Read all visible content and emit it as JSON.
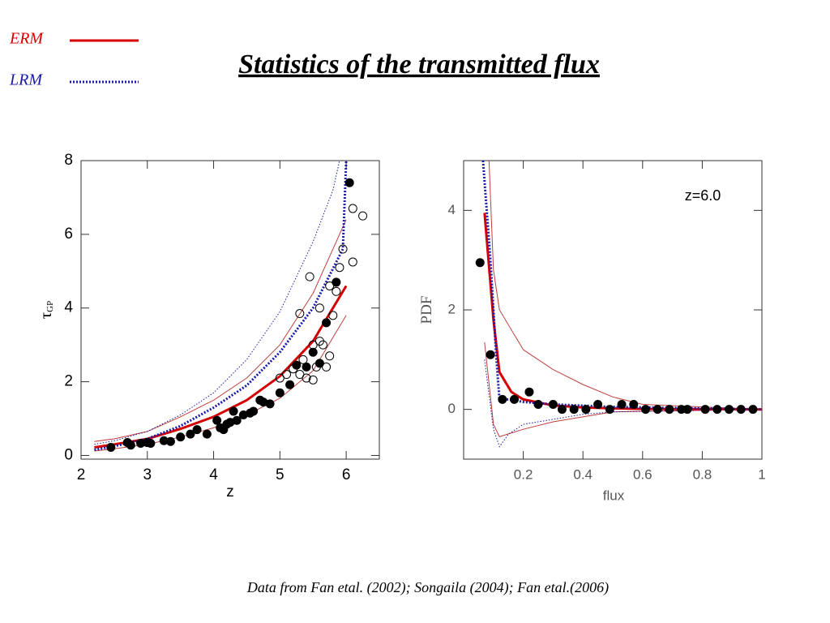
{
  "title": "Statistics of the transmitted flux",
  "footnote": "Data from Fan etal. (2002); Songaila (2004); Fan etal.(2006)",
  "legend": [
    {
      "label": "ERM",
      "color": "#d40000",
      "style": "solid"
    },
    {
      "label": "LRM",
      "color": "#1a1aa8",
      "style": "dotted"
    }
  ],
  "chart_data": [
    {
      "type": "scatter",
      "xlabel": "z",
      "ylabel": "τ",
      "ylabel_sub": "GP",
      "xlim": [
        2,
        6.5
      ],
      "ylim": [
        -0.1,
        8
      ],
      "xticks": [
        2,
        3,
        4,
        5,
        6
      ],
      "yticks": [
        0,
        2,
        4,
        6,
        8
      ],
      "tick_color": "#000000",
      "series": [
        {
          "mode": "lines",
          "color": "#c04040",
          "style": "solid",
          "width": 1,
          "x": [
            2.2,
            2.5,
            3.0,
            3.5,
            4.0,
            4.5,
            5.0,
            5.5,
            6.0
          ],
          "values": [
            0.38,
            0.45,
            0.65,
            1.05,
            1.5,
            2.1,
            3.0,
            4.4,
            6.4
          ]
        },
        {
          "mode": "lines",
          "color": "#c04040",
          "style": "solid",
          "width": 1,
          "x": [
            2.2,
            2.5,
            3.0,
            3.5,
            4.0,
            4.5,
            5.0,
            5.5,
            6.0
          ],
          "values": [
            0.12,
            0.18,
            0.3,
            0.5,
            0.75,
            1.1,
            1.55,
            2.3,
            3.8
          ]
        },
        {
          "mode": "lines",
          "color": "#1a1aa8",
          "style": "dotted",
          "width": 1,
          "x": [
            2.2,
            2.5,
            3.0,
            3.5,
            4.0,
            4.5,
            5.0,
            5.5,
            5.8,
            5.9
          ],
          "values": [
            0.3,
            0.4,
            0.65,
            1.1,
            1.7,
            2.6,
            3.9,
            5.8,
            7.2,
            8
          ]
        },
        {
          "mode": "lines",
          "color": "#d40000",
          "style": "solid",
          "width": 3,
          "x": [
            2.2,
            2.5,
            3.0,
            3.5,
            4.0,
            4.5,
            5.0,
            5.5,
            6.0
          ],
          "values": [
            0.22,
            0.3,
            0.45,
            0.72,
            1.05,
            1.5,
            2.15,
            3.1,
            4.6
          ]
        },
        {
          "mode": "lines",
          "color": "#1a1aa8",
          "style": "dotted",
          "width": 3,
          "x": [
            2.2,
            2.5,
            3.0,
            3.5,
            4.0,
            4.5,
            5.0,
            5.5,
            5.95,
            6.0
          ],
          "values": [
            0.15,
            0.25,
            0.45,
            0.8,
            1.3,
            1.9,
            2.8,
            4.0,
            5.6,
            8
          ]
        },
        {
          "mode": "markers",
          "marker": "open",
          "color": "#000000",
          "x": [
            5.0,
            5.1,
            5.2,
            5.3,
            5.35,
            5.4,
            5.45,
            5.5,
            5.55,
            5.6,
            5.65,
            5.7,
            5.75,
            5.8,
            5.85,
            5.9,
            5.95,
            6.1,
            6.1,
            6.25,
            5.3,
            5.6,
            5.75,
            5.5
          ],
          "values": [
            2.1,
            2.2,
            2.35,
            2.2,
            2.6,
            2.1,
            4.85,
            3.0,
            2.4,
            3.1,
            3.0,
            2.4,
            2.7,
            3.8,
            4.45,
            5.1,
            5.6,
            6.7,
            5.25,
            6.5,
            3.85,
            4.0,
            4.6,
            2.05
          ]
        },
        {
          "mode": "markers",
          "marker": "filled",
          "color": "#000000",
          "x": [
            2.45,
            2.7,
            2.75,
            2.9,
            3.0,
            3.05,
            3.25,
            3.35,
            3.5,
            3.65,
            3.75,
            3.9,
            4.05,
            4.1,
            4.15,
            4.2,
            4.25,
            4.3,
            4.35,
            4.45,
            4.55,
            4.6,
            4.7,
            4.75,
            4.85,
            5.0,
            5.15,
            5.25,
            5.4,
            5.5,
            5.6,
            5.7,
            5.85,
            6.05
          ],
          "values": [
            0.22,
            0.35,
            0.28,
            0.33,
            0.35,
            0.33,
            0.4,
            0.38,
            0.5,
            0.58,
            0.7,
            0.58,
            0.95,
            0.75,
            0.7,
            0.85,
            0.9,
            1.2,
            0.95,
            1.1,
            1.15,
            1.2,
            1.5,
            1.45,
            1.4,
            1.7,
            1.92,
            2.45,
            2.4,
            2.8,
            2.5,
            3.6,
            4.7,
            7.4
          ]
        }
      ]
    },
    {
      "type": "scatter",
      "xlabel": "flux",
      "ylabel": "PDF",
      "annotation": "z=6.0",
      "xlim": [
        0,
        1
      ],
      "ylim": [
        -1,
        5
      ],
      "xticks": [
        0.2,
        0.4,
        0.6,
        0.8,
        1
      ],
      "yticks": [
        0,
        2,
        4
      ],
      "tick_color": "#555555",
      "series": [
        {
          "mode": "lines",
          "color": "#c04040",
          "style": "solid",
          "width": 1,
          "x": [
            0.085,
            0.1,
            0.12,
            0.2,
            0.3,
            0.4,
            0.5,
            0.6,
            1.0
          ],
          "values": [
            5,
            2.8,
            2.0,
            1.2,
            0.8,
            0.5,
            0.25,
            0.1,
            0
          ]
        },
        {
          "mode": "lines",
          "color": "#c04040",
          "style": "solid",
          "width": 1,
          "x": [
            0.07,
            0.1,
            0.12,
            0.2,
            0.3,
            0.4,
            0.5,
            1.0
          ],
          "values": [
            1.35,
            -0.3,
            -0.55,
            -0.4,
            -0.25,
            -0.15,
            -0.05,
            0
          ]
        },
        {
          "mode": "lines",
          "color": "#1a1aa8",
          "style": "dotted",
          "width": 1,
          "x": [
            0.07,
            0.1,
            0.12,
            0.15,
            0.2,
            0.3,
            0.4,
            0.5,
            1.0
          ],
          "values": [
            1.0,
            -0.4,
            -0.75,
            -0.5,
            -0.3,
            -0.2,
            -0.1,
            -0.05,
            0
          ]
        },
        {
          "mode": "lines",
          "color": "#d40000",
          "style": "solid",
          "width": 3,
          "x": [
            0.07,
            0.1,
            0.12,
            0.16,
            0.2,
            0.3,
            0.4,
            0.5,
            0.6,
            1.0
          ],
          "values": [
            3.95,
            1.8,
            0.75,
            0.35,
            0.2,
            0.08,
            0.04,
            0.02,
            0.01,
            0
          ]
        },
        {
          "mode": "lines",
          "color": "#1a1aa8",
          "style": "dotted",
          "width": 3,
          "x": [
            0.065,
            0.09,
            0.11,
            0.12,
            0.15,
            0.2,
            0.3,
            0.5,
            1.0
          ],
          "values": [
            5,
            3,
            1,
            0.2,
            0.2,
            0.15,
            0.1,
            0.05,
            0
          ]
        },
        {
          "mode": "markers",
          "marker": "filled",
          "color": "#000000",
          "x": [
            0.055,
            0.09,
            0.13,
            0.17,
            0.22,
            0.25,
            0.3,
            0.33,
            0.37,
            0.41,
            0.45,
            0.49,
            0.53,
            0.57,
            0.61,
            0.65,
            0.69,
            0.73,
            0.75,
            0.81,
            0.85,
            0.89,
            0.93,
            0.97
          ],
          "values": [
            2.95,
            1.1,
            0.2,
            0.2,
            0.35,
            0.1,
            0.1,
            0.0,
            0.0,
            0.0,
            0.1,
            0.0,
            0.1,
            0.1,
            0.0,
            0.0,
            0.0,
            0.0,
            0.0,
            0.0,
            0.0,
            0.0,
            0.0,
            0.0
          ]
        }
      ]
    }
  ]
}
